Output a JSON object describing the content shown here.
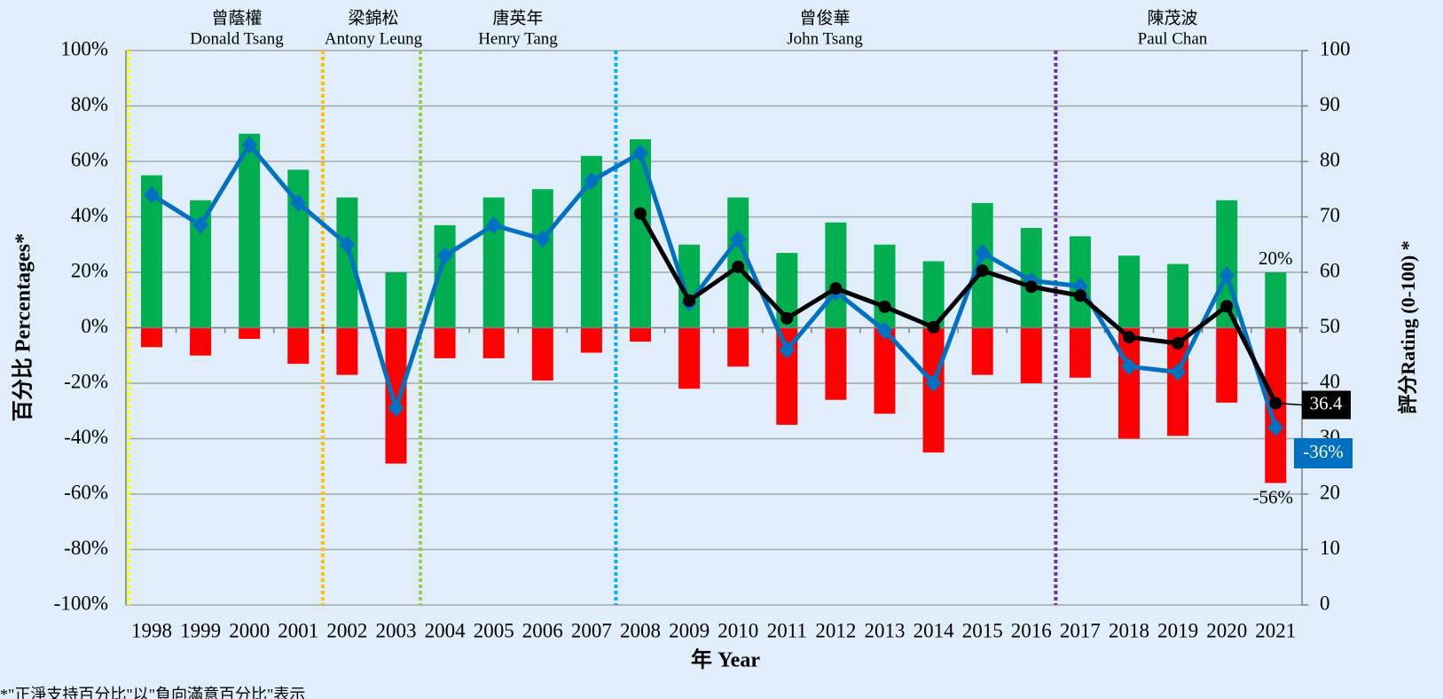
{
  "chart_data": {
    "type": "bar",
    "categories": [
      "1998",
      "1999",
      "2000",
      "2001",
      "2002",
      "2003",
      "2004",
      "2005",
      "2006",
      "2007",
      "2008",
      "2009",
      "2010",
      "2011",
      "2012",
      "2013",
      "2014",
      "2015",
      "2016",
      "2017",
      "2018",
      "2019",
      "2020",
      "2021"
    ],
    "series": [
      {
        "type": "bar",
        "color": "#00b050",
        "values": [
          55,
          46,
          70,
          57,
          47,
          20,
          37,
          47,
          50,
          62,
          68,
          30,
          47,
          27,
          38,
          30,
          24,
          45,
          36,
          33,
          26,
          23,
          46,
          20
        ],
        "value_labels": [
          null,
          null,
          null,
          null,
          null,
          null,
          null,
          null,
          null,
          null,
          null,
          null,
          null,
          null,
          null,
          null,
          null,
          null,
          null,
          null,
          null,
          null,
          null,
          "20%"
        ]
      },
      {
        "type": "bar",
        "color": "#ff0000",
        "values": [
          -7,
          -10,
          -4,
          -13,
          -17,
          -49,
          -11,
          -11,
          -19,
          -9,
          -5,
          -22,
          -14,
          -35,
          -26,
          -31,
          -45,
          -17,
          -20,
          -18,
          -40,
          -39,
          -27,
          -56
        ],
        "value_labels": [
          null,
          null,
          null,
          null,
          null,
          null,
          null,
          null,
          null,
          null,
          null,
          null,
          null,
          null,
          null,
          null,
          null,
          null,
          null,
          null,
          null,
          null,
          null,
          "-56%"
        ]
      },
      {
        "type": "line",
        "color": "#0070c0",
        "marker": "diamond",
        "values": [
          48,
          37,
          66,
          45,
          30,
          -29,
          26,
          37,
          32,
          53,
          63,
          9,
          32,
          -8,
          13,
          -1,
          -20,
          27,
          17,
          15,
          -14,
          -16,
          19,
          -36
        ],
        "value_labels": [
          null,
          null,
          null,
          null,
          null,
          null,
          null,
          null,
          null,
          null,
          null,
          null,
          null,
          null,
          null,
          null,
          null,
          null,
          null,
          null,
          null,
          null,
          null,
          "-36%"
        ]
      },
      {
        "type": "line",
        "color": "#000000",
        "marker": "circle",
        "axis": "y2",
        "values": [
          null,
          null,
          null,
          null,
          null,
          null,
          null,
          null,
          null,
          null,
          70.6,
          54.9,
          61,
          51.7,
          57.1,
          53.8,
          50.1,
          60.3,
          57.4,
          55.8,
          48.3,
          47.2,
          53.9,
          36.4
        ]
      }
    ],
    "xlabel": "年 Year",
    "ylabel": "百分比 Percentages*",
    "y2label": "評分Rating (0-100) *",
    "ylim": [
      -100,
      100
    ],
    "yticks": [
      {
        "value": -100,
        "label": "-100%"
      },
      {
        "value": -80,
        "label": "-80%"
      },
      {
        "value": -60,
        "label": "-60%"
      },
      {
        "value": -40,
        "label": "-40%"
      },
      {
        "value": -20,
        "label": "-20%"
      },
      {
        "value": 0,
        "label": "0%"
      },
      {
        "value": 20,
        "label": "20%"
      },
      {
        "value": 40,
        "label": "40%"
      },
      {
        "value": 60,
        "label": "60%"
      },
      {
        "value": 80,
        "label": "80%"
      },
      {
        "value": 100,
        "label": "100%"
      }
    ],
    "y2lim": [
      0,
      100
    ],
    "y2ticks": [
      0,
      10,
      20,
      30,
      40,
      50,
      60,
      70,
      80,
      90,
      100
    ],
    "grid": true,
    "annotations": [
      {
        "zh": "曾蔭權",
        "en": "Donald Tsang",
        "color": "#ffff00"
      },
      {
        "zh": "梁錦松",
        "en": "Antony Leung",
        "color": "#ffc000"
      },
      {
        "zh": "唐英年",
        "en": "Henry Tang",
        "color": "#92d050"
      },
      {
        "zh": "曾俊華",
        "en": "John Tsang",
        "color": "#00b0f0"
      },
      {
        "zh": "陳茂波",
        "en": "Paul Chan",
        "color": "#7030a0"
      }
    ],
    "footnote": "*\"正淨支持百分比\"以\"負向滿意百分比\"表示"
  }
}
